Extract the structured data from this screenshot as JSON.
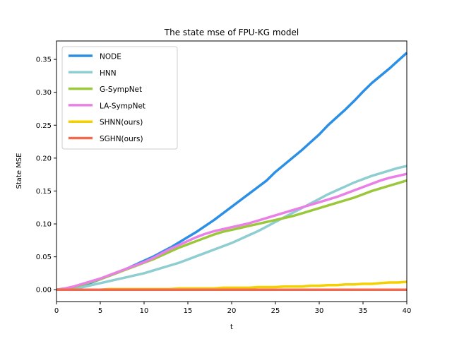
{
  "chart_data": {
    "type": "line",
    "title": "The state mse of FPU-KG model",
    "xlabel": "t",
    "ylabel": "State MSE",
    "xlim": [
      0,
      40
    ],
    "ylim": [
      -0.018,
      0.378
    ],
    "xticks": [
      0,
      5,
      10,
      15,
      20,
      25,
      30,
      35,
      40
    ],
    "yticks": [
      0.0,
      0.05,
      0.1,
      0.15,
      0.2,
      0.25,
      0.3,
      0.35
    ],
    "ytick_labels": [
      "0.00",
      "0.05",
      "0.10",
      "0.15",
      "0.20",
      "0.25",
      "0.30",
      "0.35"
    ],
    "grid": false,
    "legend_position": "upper-left",
    "series": [
      {
        "name": "NODE",
        "color": "#2b8fe6",
        "x": [
          0,
          1,
          2,
          3,
          4,
          5,
          6,
          7,
          8,
          9,
          10,
          11,
          12,
          13,
          14,
          15,
          16,
          17,
          18,
          19,
          20,
          21,
          22,
          23,
          24,
          25,
          26,
          27,
          28,
          29,
          30,
          31,
          32,
          33,
          34,
          35,
          36,
          37,
          38,
          39,
          40
        ],
        "y": [
          0.0,
          0.001,
          0.003,
          0.007,
          0.011,
          0.016,
          0.021,
          0.026,
          0.032,
          0.038,
          0.044,
          0.05,
          0.057,
          0.064,
          0.072,
          0.08,
          0.088,
          0.097,
          0.106,
          0.116,
          0.126,
          0.136,
          0.146,
          0.156,
          0.166,
          0.179,
          0.19,
          0.201,
          0.212,
          0.224,
          0.236,
          0.25,
          0.262,
          0.274,
          0.287,
          0.301,
          0.314,
          0.325,
          0.336,
          0.348,
          0.36
        ]
      },
      {
        "name": "HNN",
        "color": "#8ecdd0",
        "x": [
          0,
          1,
          2,
          3,
          4,
          5,
          6,
          7,
          8,
          9,
          10,
          11,
          12,
          13,
          14,
          15,
          16,
          17,
          18,
          19,
          20,
          21,
          22,
          23,
          24,
          25,
          26,
          27,
          28,
          29,
          30,
          31,
          32,
          33,
          34,
          35,
          36,
          37,
          38,
          39,
          40
        ],
        "y": [
          0.0,
          0.001,
          0.002,
          0.004,
          0.007,
          0.01,
          0.013,
          0.016,
          0.019,
          0.022,
          0.025,
          0.029,
          0.033,
          0.037,
          0.041,
          0.046,
          0.051,
          0.056,
          0.061,
          0.066,
          0.071,
          0.077,
          0.083,
          0.089,
          0.096,
          0.103,
          0.11,
          0.117,
          0.124,
          0.131,
          0.138,
          0.145,
          0.151,
          0.157,
          0.163,
          0.168,
          0.173,
          0.177,
          0.181,
          0.185,
          0.188
        ]
      },
      {
        "name": "G-SympNet",
        "color": "#9ac83a",
        "x": [
          0,
          1,
          2,
          3,
          4,
          5,
          6,
          7,
          8,
          9,
          10,
          11,
          12,
          13,
          14,
          15,
          16,
          17,
          18,
          19,
          20,
          21,
          22,
          23,
          24,
          25,
          26,
          27,
          28,
          29,
          30,
          31,
          32,
          33,
          34,
          35,
          36,
          37,
          38,
          39,
          40
        ],
        "y": [
          0.0,
          0.002,
          0.004,
          0.008,
          0.012,
          0.016,
          0.021,
          0.026,
          0.031,
          0.036,
          0.041,
          0.046,
          0.052,
          0.058,
          0.064,
          0.069,
          0.074,
          0.079,
          0.084,
          0.088,
          0.091,
          0.094,
          0.097,
          0.1,
          0.103,
          0.106,
          0.109,
          0.112,
          0.116,
          0.12,
          0.124,
          0.128,
          0.132,
          0.136,
          0.14,
          0.145,
          0.15,
          0.154,
          0.158,
          0.162,
          0.166
        ]
      },
      {
        "name": "LA-SympNet",
        "color": "#ea80e6",
        "x": [
          0,
          1,
          2,
          3,
          4,
          5,
          6,
          7,
          8,
          9,
          10,
          11,
          12,
          13,
          14,
          15,
          16,
          17,
          18,
          19,
          20,
          21,
          22,
          23,
          24,
          25,
          26,
          27,
          28,
          29,
          30,
          31,
          32,
          33,
          34,
          35,
          36,
          37,
          38,
          39,
          40
        ],
        "y": [
          0.0,
          0.002,
          0.005,
          0.009,
          0.013,
          0.017,
          0.022,
          0.027,
          0.032,
          0.037,
          0.042,
          0.048,
          0.055,
          0.062,
          0.068,
          0.074,
          0.08,
          0.085,
          0.089,
          0.092,
          0.095,
          0.098,
          0.101,
          0.105,
          0.109,
          0.113,
          0.117,
          0.121,
          0.125,
          0.129,
          0.133,
          0.137,
          0.141,
          0.146,
          0.151,
          0.156,
          0.161,
          0.166,
          0.17,
          0.173,
          0.176
        ]
      },
      {
        "name": "SHNN(ours)",
        "color": "#f5d000",
        "x": [
          0,
          1,
          2,
          3,
          4,
          5,
          6,
          7,
          8,
          9,
          10,
          11,
          12,
          13,
          14,
          15,
          16,
          17,
          18,
          19,
          20,
          21,
          22,
          23,
          24,
          25,
          26,
          27,
          28,
          29,
          30,
          31,
          32,
          33,
          34,
          35,
          36,
          37,
          38,
          39,
          40
        ],
        "y": [
          0.0,
          0.0,
          0.0,
          0.0,
          0.0,
          0.0,
          0.001,
          0.001,
          0.001,
          0.001,
          0.001,
          0.001,
          0.001,
          0.001,
          0.002,
          0.002,
          0.002,
          0.002,
          0.002,
          0.003,
          0.003,
          0.003,
          0.003,
          0.004,
          0.004,
          0.004,
          0.005,
          0.005,
          0.005,
          0.006,
          0.006,
          0.007,
          0.007,
          0.008,
          0.008,
          0.009,
          0.009,
          0.01,
          0.011,
          0.011,
          0.012
        ]
      },
      {
        "name": "SGHN(ours)",
        "color": "#f06a4f",
        "x": [
          0,
          1,
          2,
          3,
          4,
          5,
          6,
          7,
          8,
          9,
          10,
          11,
          12,
          13,
          14,
          15,
          16,
          17,
          18,
          19,
          20,
          21,
          22,
          23,
          24,
          25,
          26,
          27,
          28,
          29,
          30,
          31,
          32,
          33,
          34,
          35,
          36,
          37,
          38,
          39,
          40
        ],
        "y": [
          0.0,
          0.0,
          0.0,
          0.0,
          0.0,
          0.0,
          0.0,
          0.0,
          0.0,
          0.0,
          0.0,
          0.0,
          0.0,
          0.0,
          0.0,
          0.0,
          0.0,
          0.0,
          0.0,
          0.0,
          0.0,
          0.0,
          0.0,
          0.0,
          0.0,
          0.0,
          0.0,
          0.0,
          0.0,
          0.0,
          0.0,
          0.0,
          0.0,
          0.0,
          0.0,
          0.0,
          0.0,
          0.0,
          0.0,
          0.0,
          0.0
        ]
      }
    ]
  }
}
